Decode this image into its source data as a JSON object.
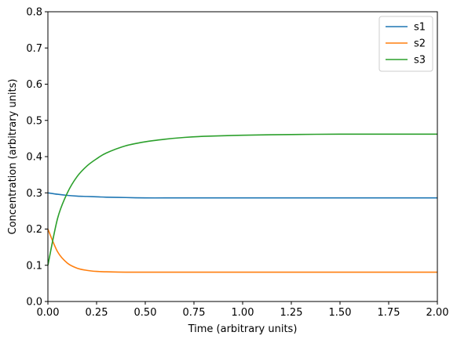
{
  "chart_data": {
    "type": "line",
    "title": "",
    "xlabel": "Time (arbitrary units)",
    "ylabel": "Concentration (arbitrary units)",
    "xlim": [
      0,
      2
    ],
    "ylim": [
      0,
      0.8
    ],
    "x_ticks": [
      "0.00",
      "0.25",
      "0.50",
      "0.75",
      "1.00",
      "1.25",
      "1.50",
      "1.75",
      "2.00"
    ],
    "y_ticks": [
      "0.0",
      "0.1",
      "0.2",
      "0.3",
      "0.4",
      "0.5",
      "0.6",
      "0.7",
      "0.8"
    ],
    "grid": false,
    "legend_position": "top-right",
    "x": [
      0,
      0.05,
      0.1,
      0.15,
      0.2,
      0.25,
      0.3,
      0.4,
      0.5,
      0.6,
      0.7,
      0.8,
      1.0,
      1.25,
      1.5,
      1.75,
      2.0
    ],
    "series": [
      {
        "name": "s1",
        "color": "#1f77b4",
        "values": [
          0.3,
          0.296,
          0.293,
          0.291,
          0.29,
          0.289,
          0.288,
          0.287,
          0.286,
          0.286,
          0.286,
          0.286,
          0.286,
          0.286,
          0.286,
          0.286,
          0.286
        ]
      },
      {
        "name": "s2",
        "color": "#ff7f0e",
        "values": [
          0.2,
          0.137,
          0.106,
          0.092,
          0.086,
          0.083,
          0.082,
          0.081,
          0.081,
          0.081,
          0.081,
          0.081,
          0.081,
          0.081,
          0.081,
          0.081,
          0.081
        ]
      },
      {
        "name": "s3",
        "color": "#2ca02c",
        "values": [
          0.1,
          0.23,
          0.3,
          0.345,
          0.374,
          0.394,
          0.41,
          0.43,
          0.441,
          0.448,
          0.453,
          0.456,
          0.459,
          0.461,
          0.462,
          0.462,
          0.462
        ]
      }
    ]
  }
}
